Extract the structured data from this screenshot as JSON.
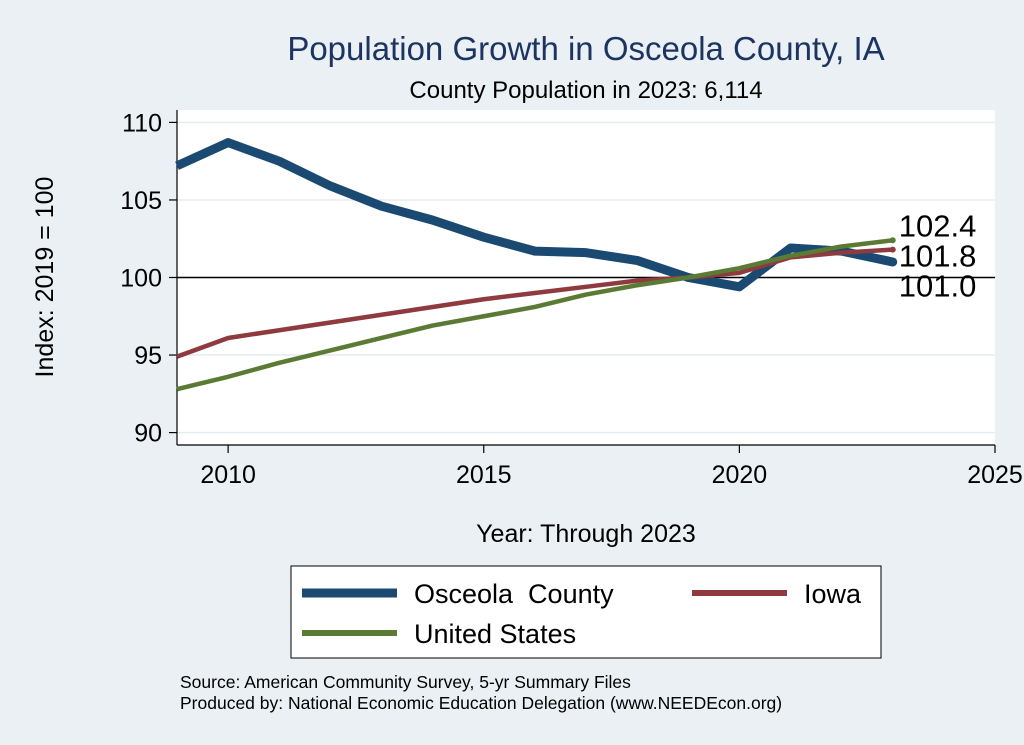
{
  "chart_data": {
    "type": "line",
    "title": "Population Growth in Osceola County, IA",
    "subtitle": "County Population in 2023: 6,114",
    "xlabel": "Year: Through 2023",
    "ylabel": "Index: 2019 = 100",
    "xlim": [
      2009,
      2025
    ],
    "ylim": [
      89.2,
      110.8
    ],
    "xticks": [
      2010,
      2015,
      2020,
      2025
    ],
    "yticks": [
      90,
      95,
      100,
      105,
      110
    ],
    "reference_line": 100,
    "grid": true,
    "x": [
      2009,
      2010,
      2011,
      2012,
      2013,
      2014,
      2015,
      2016,
      2017,
      2018,
      2019,
      2020,
      2021,
      2022,
      2023
    ],
    "series": [
      {
        "name": "Osceola  County",
        "color": "#1a4a72",
        "values": [
          107.2,
          108.7,
          107.5,
          105.9,
          104.6,
          103.7,
          102.6,
          101.7,
          101.6,
          101.1,
          100.0,
          99.4,
          101.9,
          101.7,
          101.0
        ],
        "end_label": "101.0"
      },
      {
        "name": "Iowa",
        "color": "#8f3a3e",
        "values": [
          94.9,
          96.1,
          96.6,
          97.1,
          97.6,
          98.1,
          98.6,
          99.0,
          99.4,
          99.8,
          100.0,
          100.3,
          101.3,
          101.6,
          101.8
        ],
        "end_label": "101.8"
      },
      {
        "name": "United States",
        "color": "#5b7b34",
        "values": [
          92.8,
          93.6,
          94.5,
          95.3,
          96.1,
          96.9,
          97.5,
          98.1,
          98.9,
          99.5,
          100.0,
          100.6,
          101.4,
          102.0,
          102.4
        ],
        "end_label": "102.4"
      }
    ],
    "legend": {
      "placement": "bottom",
      "entries": [
        "Osceola  County",
        "Iowa",
        "United States"
      ]
    },
    "source_lines": [
      "Source: American Community Survey, 5-yr Summary Files",
      "Produced by: National Economic Education Delegation (www.NEEDEcon.org)"
    ]
  }
}
